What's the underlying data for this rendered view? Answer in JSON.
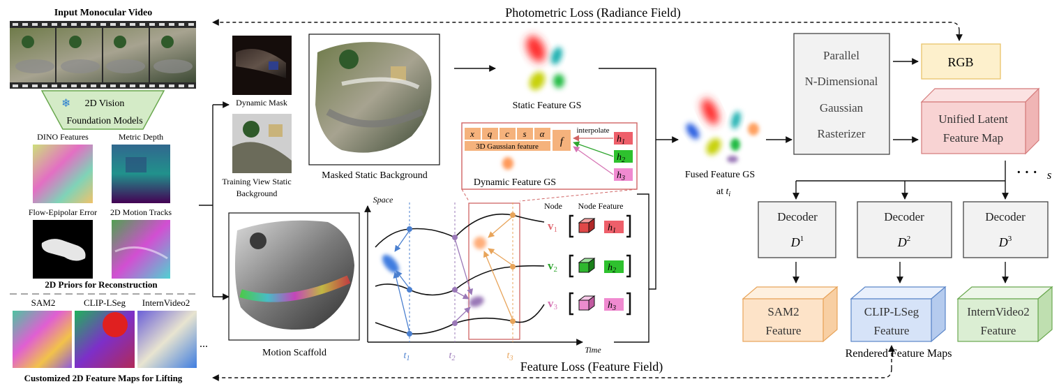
{
  "top_loss": "Photometric Loss (Radiance Field)",
  "bottom_loss": "Feature Loss (Feature Field)",
  "input": {
    "title": "Input Monocular Video",
    "foundation_lines": [
      "2D Vision",
      "Foundation Models"
    ],
    "priors": [
      "DINO Features",
      "Metric Depth",
      "Flow-Epipolar Error",
      "2D Motion Tracks"
    ],
    "priors_caption": "2D Priors for Reconstruction",
    "features": [
      "SAM2",
      "CLIP-LSeg",
      "InternVideo2"
    ],
    "ellipsis": "...",
    "features_caption": "Customized 2D Feature Maps for Lifting"
  },
  "middle": {
    "dynamic_mask": "Dynamic Mask",
    "training_view": [
      "Training View Static",
      "Background"
    ],
    "masked_static": "Masked Static Background",
    "static_gs": "Static Feature GS",
    "dynamic_gs": "Dynamic Feature GS",
    "motion_scaffold": "Motion Scaffold",
    "gaussian_params": [
      "x",
      "q",
      "c",
      "s",
      "α"
    ],
    "gaussian_feature": "3D Gaussian feature",
    "f_label": "f",
    "interpolate": "interpolate",
    "h_labels": [
      "h",
      "h",
      "h"
    ],
    "h_subs": [
      "1",
      "2",
      "3"
    ],
    "space_label": "Space",
    "time_label": "Time",
    "node_label": "Node",
    "node_feature_label": "Node Feature",
    "v_labels": [
      "v",
      "v",
      "v"
    ],
    "v_subs": [
      "1",
      "2",
      "3"
    ],
    "t_labels": [
      "t",
      "t",
      "t"
    ],
    "t_subs": [
      "1",
      "2",
      "3"
    ]
  },
  "right": {
    "fused_gs": "Fused Feature GS",
    "fused_at": "at",
    "fused_t": "t",
    "fused_sub": "i",
    "rasterizer_lines": [
      "Parallel",
      "N-Dimensional",
      "Gaussian",
      "Rasterizer"
    ],
    "rgb": "RGB",
    "latent_lines": [
      "Unified Latent",
      "Feature Map"
    ],
    "dots": "· · ·",
    "s_label": "s",
    "decoders": [
      {
        "title": "Decoder",
        "sym": "D",
        "sup": "1"
      },
      {
        "title": "Decoder",
        "sym": "D",
        "sup": "2"
      },
      {
        "title": "Decoder",
        "sym": "D",
        "sup": "3"
      }
    ],
    "outputs": [
      {
        "line1": "SAM2",
        "line2": "Feature"
      },
      {
        "line1": "CLIP-LSeg",
        "line2": "Feature"
      },
      {
        "line1": "InternVideo2",
        "line2": "Feature"
      }
    ],
    "rendered_caption": "Rendered Feature Maps"
  },
  "colors": {
    "v1": "#e06a72",
    "v2": "#2fa52f",
    "v3": "#d674b4",
    "t1": "#4a7fcf",
    "t2": "#9a78b7",
    "t3": "#e8a45a",
    "rgb_fill": "#fdf0cc",
    "rgb_stroke": "#e9c46a",
    "latent_fill": "#f8d3d3",
    "latent_stroke": "#d47a7a",
    "sam2_fill": "#fde3c8",
    "clip_fill": "#d6e3f8",
    "intern_fill": "#dbeed3",
    "foundation_fill": "#d4ebc7",
    "foundation_stroke": "#6aa84f",
    "dynamic_box_stroke": "#d06464"
  }
}
